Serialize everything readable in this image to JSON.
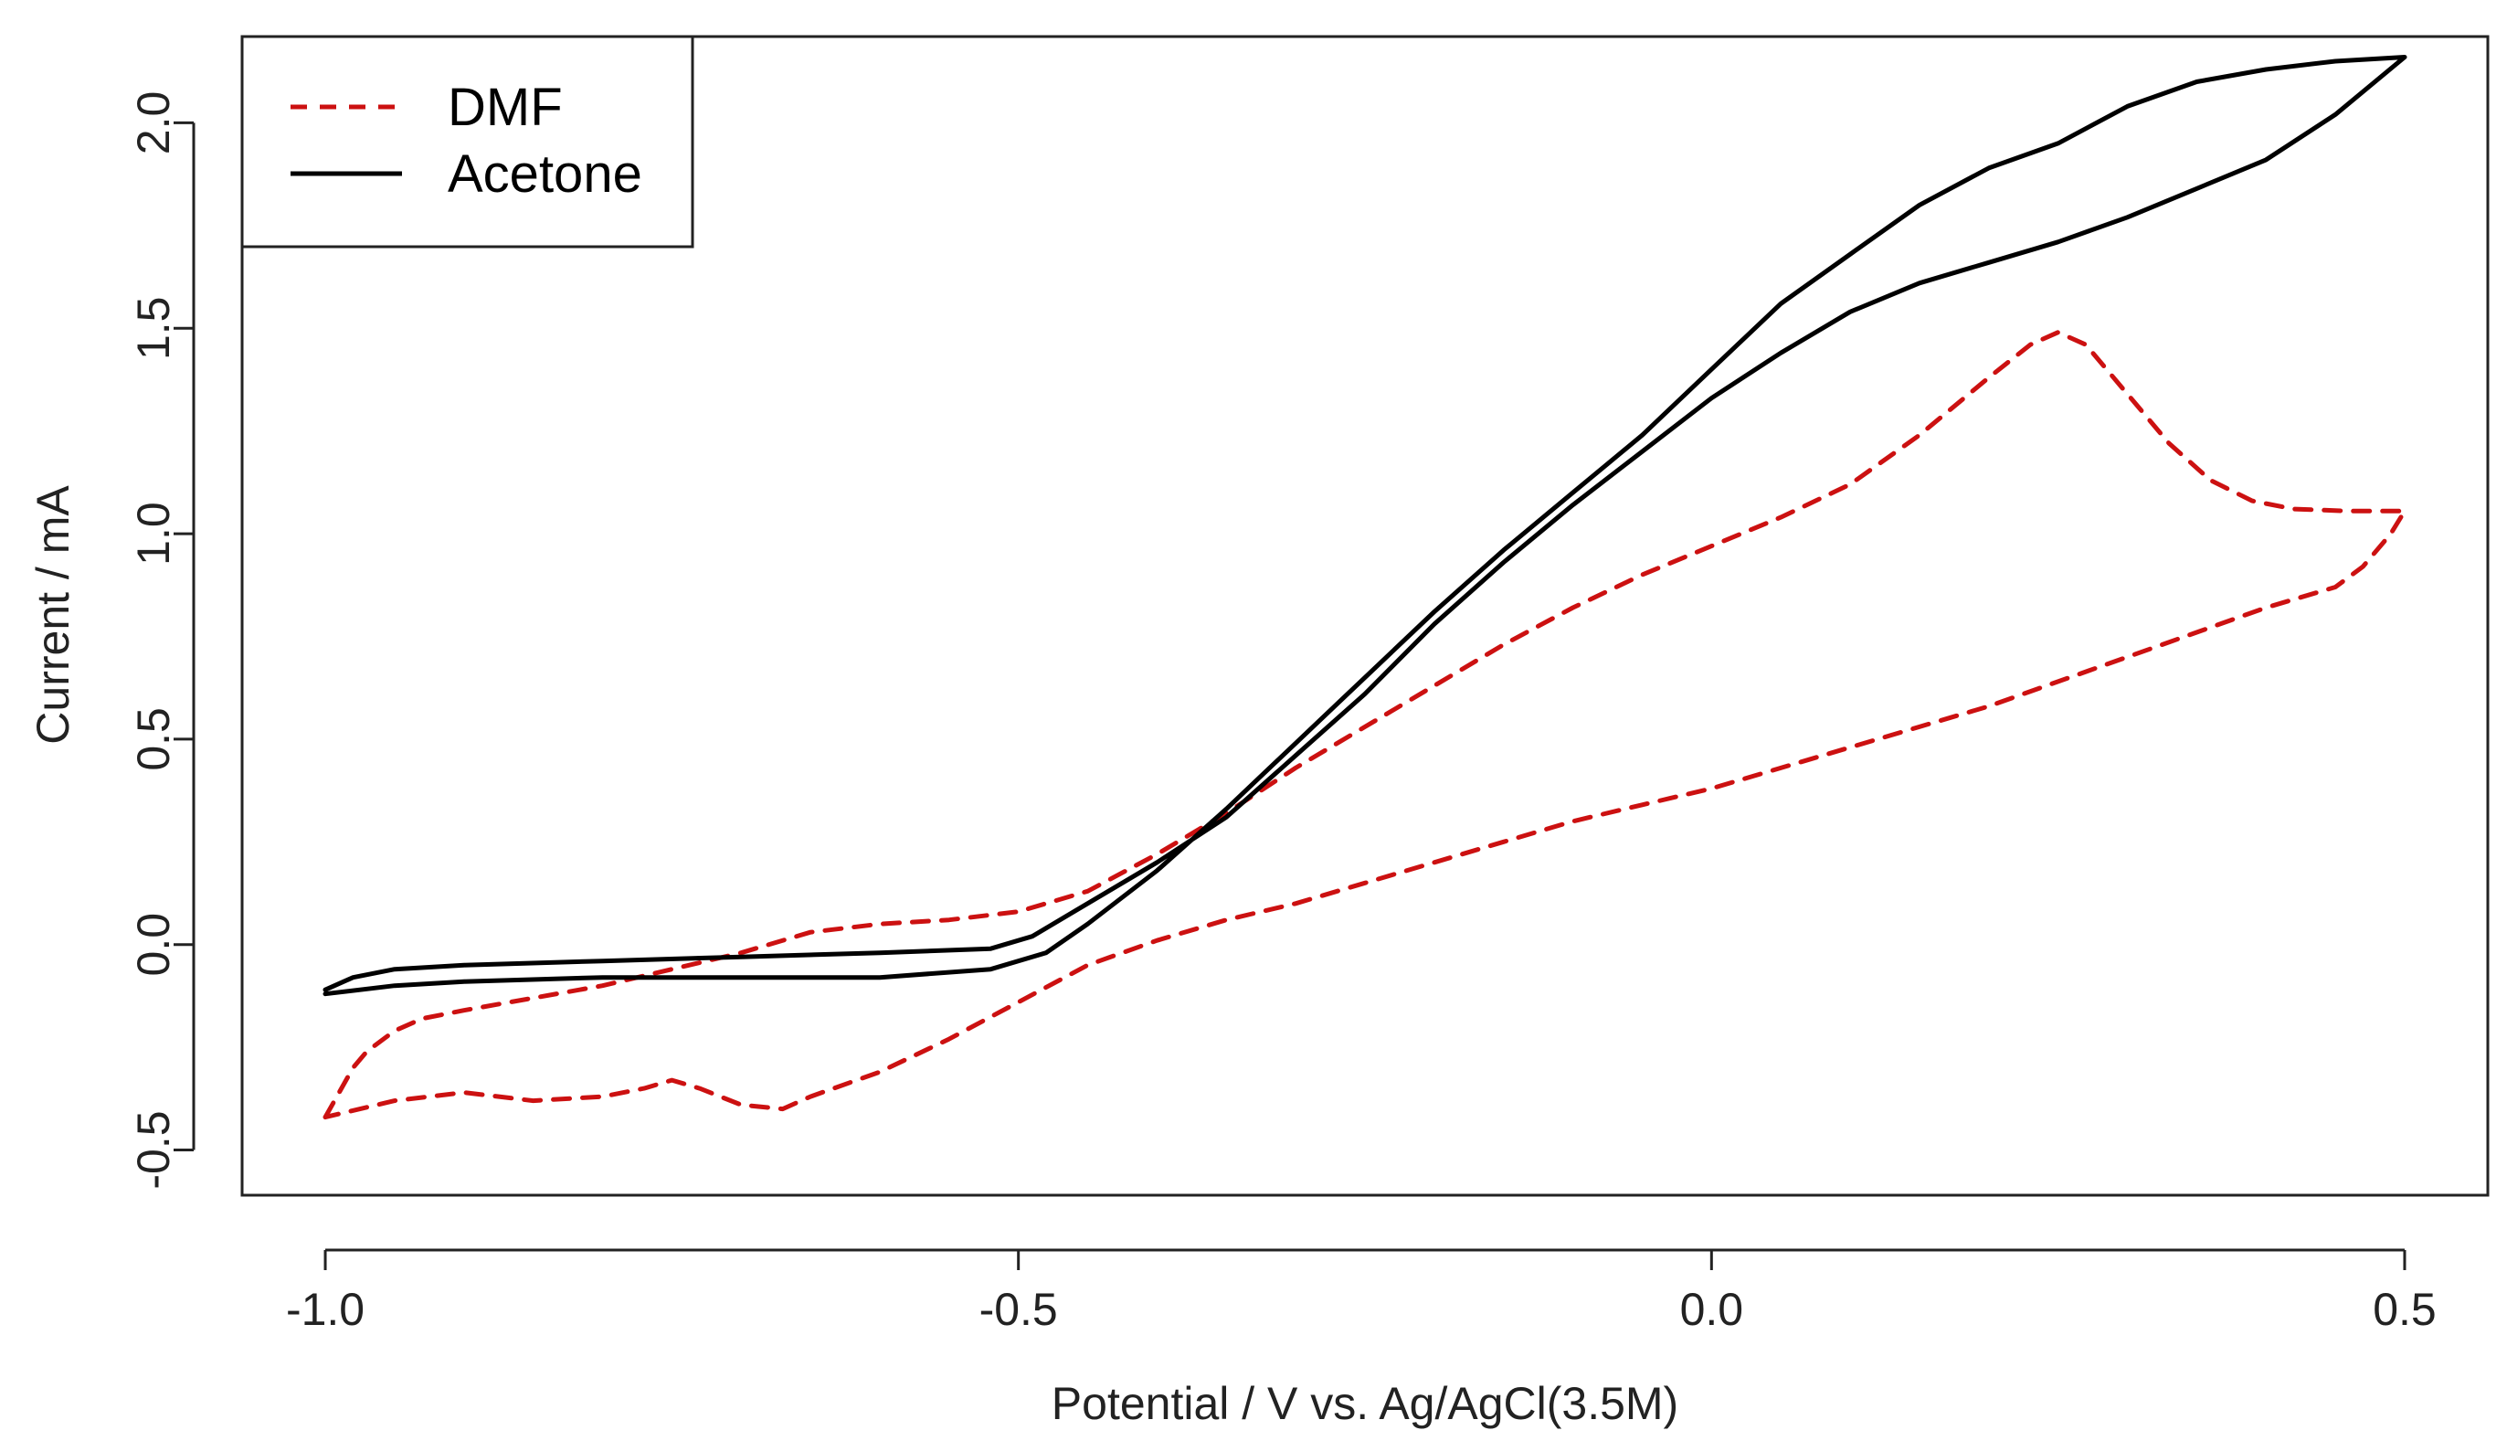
{
  "chart_data": {
    "type": "line",
    "title": "",
    "xlabel": "Potential / V vs. Ag/AgCl(3.5M)",
    "ylabel": "Current / mA",
    "xlim": [
      -1.06,
      0.56
    ],
    "ylim": [
      -0.61,
      2.21
    ],
    "xticks": [
      -1.0,
      -0.5,
      0.0,
      0.5
    ],
    "xtick_labels": [
      "-1.0",
      "-0.5",
      "0.0",
      "0.5"
    ],
    "yticks": [
      -0.5,
      0.0,
      0.5,
      1.0,
      1.5,
      2.0
    ],
    "ytick_labels": [
      "-0.5",
      "0.0",
      "0.5",
      "1.0",
      "1.5",
      "2.0"
    ],
    "grid": false,
    "legend_position": "top-left",
    "series": [
      {
        "name": "DMF",
        "color": "#cc1111",
        "style": "dashed",
        "points": [
          [
            -1.0,
            -0.42
          ],
          [
            -0.99,
            -0.36
          ],
          [
            -0.98,
            -0.3
          ],
          [
            -0.97,
            -0.26
          ],
          [
            -0.95,
            -0.21
          ],
          [
            -0.93,
            -0.18
          ],
          [
            -0.9,
            -0.16
          ],
          [
            -0.85,
            -0.13
          ],
          [
            -0.8,
            -0.1
          ],
          [
            -0.75,
            -0.06
          ],
          [
            -0.7,
            -0.02
          ],
          [
            -0.65,
            0.03
          ],
          [
            -0.6,
            0.05
          ],
          [
            -0.55,
            0.06
          ],
          [
            -0.5,
            0.08
          ],
          [
            -0.45,
            0.13
          ],
          [
            -0.4,
            0.22
          ],
          [
            -0.35,
            0.32
          ],
          [
            -0.3,
            0.43
          ],
          [
            -0.25,
            0.53
          ],
          [
            -0.2,
            0.63
          ],
          [
            -0.15,
            0.73
          ],
          [
            -0.1,
            0.82
          ],
          [
            -0.05,
            0.9
          ],
          [
            0.0,
            0.97
          ],
          [
            0.05,
            1.04
          ],
          [
            0.1,
            1.12
          ],
          [
            0.15,
            1.24
          ],
          [
            0.2,
            1.38
          ],
          [
            0.23,
            1.46
          ],
          [
            0.25,
            1.49
          ],
          [
            0.27,
            1.46
          ],
          [
            0.3,
            1.34
          ],
          [
            0.33,
            1.22
          ],
          [
            0.36,
            1.13
          ],
          [
            0.39,
            1.08
          ],
          [
            0.42,
            1.06
          ],
          [
            0.46,
            1.055
          ],
          [
            0.5,
            1.055
          ],
          [
            0.49,
            1.0
          ],
          [
            0.47,
            0.92
          ],
          [
            0.45,
            0.87
          ],
          [
            0.4,
            0.82
          ],
          [
            0.35,
            0.76
          ],
          [
            0.3,
            0.7
          ],
          [
            0.25,
            0.64
          ],
          [
            0.2,
            0.58
          ],
          [
            0.15,
            0.53
          ],
          [
            0.1,
            0.48
          ],
          [
            0.05,
            0.43
          ],
          [
            0.0,
            0.38
          ],
          [
            -0.05,
            0.34
          ],
          [
            -0.1,
            0.3
          ],
          [
            -0.15,
            0.25
          ],
          [
            -0.2,
            0.2
          ],
          [
            -0.25,
            0.15
          ],
          [
            -0.3,
            0.1
          ],
          [
            -0.35,
            0.06
          ],
          [
            -0.4,
            0.01
          ],
          [
            -0.45,
            -0.05
          ],
          [
            -0.5,
            -0.14
          ],
          [
            -0.55,
            -0.23
          ],
          [
            -0.6,
            -0.31
          ],
          [
            -0.65,
            -0.37
          ],
          [
            -0.67,
            -0.4
          ],
          [
            -0.7,
            -0.39
          ],
          [
            -0.73,
            -0.35
          ],
          [
            -0.75,
            -0.33
          ],
          [
            -0.77,
            -0.35
          ],
          [
            -0.8,
            -0.37
          ],
          [
            -0.85,
            -0.38
          ],
          [
            -0.9,
            -0.36
          ],
          [
            -0.95,
            -0.38
          ],
          [
            -1.0,
            -0.42
          ]
        ]
      },
      {
        "name": "Acetone",
        "color": "#000000",
        "style": "solid",
        "points": [
          [
            -1.0,
            -0.11
          ],
          [
            -0.98,
            -0.08
          ],
          [
            -0.95,
            -0.06
          ],
          [
            -0.9,
            -0.05
          ],
          [
            -0.8,
            -0.04
          ],
          [
            -0.7,
            -0.03
          ],
          [
            -0.6,
            -0.02
          ],
          [
            -0.52,
            -0.01
          ],
          [
            -0.49,
            0.02
          ],
          [
            -0.46,
            0.08
          ],
          [
            -0.4,
            0.2
          ],
          [
            -0.35,
            0.31
          ],
          [
            -0.3,
            0.46
          ],
          [
            -0.25,
            0.61
          ],
          [
            -0.2,
            0.78
          ],
          [
            -0.15,
            0.93
          ],
          [
            -0.1,
            1.07
          ],
          [
            -0.05,
            1.2
          ],
          [
            0.0,
            1.33
          ],
          [
            0.05,
            1.44
          ],
          [
            0.1,
            1.54
          ],
          [
            0.15,
            1.61
          ],
          [
            0.2,
            1.66
          ],
          [
            0.25,
            1.71
          ],
          [
            0.3,
            1.77
          ],
          [
            0.35,
            1.84
          ],
          [
            0.4,
            1.91
          ],
          [
            0.45,
            2.02
          ],
          [
            0.5,
            2.16
          ],
          [
            0.45,
            2.15
          ],
          [
            0.4,
            2.13
          ],
          [
            0.35,
            2.1
          ],
          [
            0.3,
            2.04
          ],
          [
            0.25,
            1.95
          ],
          [
            0.2,
            1.89
          ],
          [
            0.15,
            1.8
          ],
          [
            0.1,
            1.68
          ],
          [
            0.05,
            1.56
          ],
          [
            0.0,
            1.4
          ],
          [
            -0.05,
            1.24
          ],
          [
            -0.1,
            1.1
          ],
          [
            -0.15,
            0.96
          ],
          [
            -0.2,
            0.81
          ],
          [
            -0.25,
            0.65
          ],
          [
            -0.3,
            0.49
          ],
          [
            -0.35,
            0.33
          ],
          [
            -0.4,
            0.18
          ],
          [
            -0.45,
            0.05
          ],
          [
            -0.48,
            -0.02
          ],
          [
            -0.52,
            -0.06
          ],
          [
            -0.6,
            -0.08
          ],
          [
            -0.7,
            -0.08
          ],
          [
            -0.8,
            -0.08
          ],
          [
            -0.9,
            -0.09
          ],
          [
            -0.95,
            -0.1
          ],
          [
            -1.0,
            -0.12
          ]
        ]
      }
    ]
  }
}
